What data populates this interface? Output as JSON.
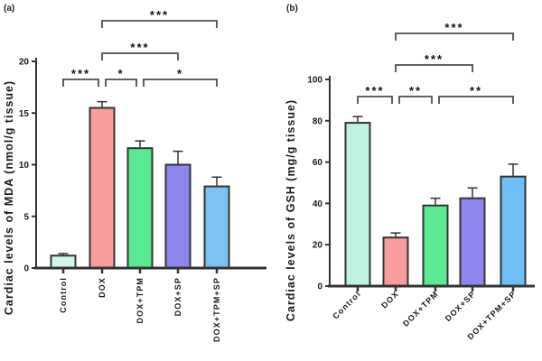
{
  "figure": {
    "background": "#ffffff",
    "axis_color": "#333333",
    "bracket_color": "#4d4d4d",
    "star_color": "#111111",
    "text_color": "#1a1a1a"
  },
  "chart_data": [
    {
      "panel_label": "(a)",
      "type": "bar",
      "title": "",
      "xlabel": "",
      "ylabel": "Cardiac levels of MDA (nmol/g tissue)",
      "categories": [
        "Control",
        "DOX",
        "DOX+TPM",
        "DOX+SP",
        "DOX+TPM+SP"
      ],
      "values": [
        1.2,
        15.5,
        11.6,
        10.0,
        7.9
      ],
      "errors_upper": [
        0.2,
        0.6,
        0.7,
        1.3,
        0.9
      ],
      "bar_colors": [
        "#d2f7e9",
        "#f89c9c",
        "#5aea90",
        "#8e86ee",
        "#7cc3f3"
      ],
      "bar_border_color": "#333333",
      "ylim": [
        0,
        20
      ],
      "yticks": [
        0,
        5,
        10,
        15,
        20
      ],
      "xtick_label_rotation_deg": 90,
      "grid": false,
      "legend": "none",
      "significance_brackets": [
        {
          "from": "Control",
          "to": "DOX",
          "label": "***",
          "row": 0
        },
        {
          "from": "DOX",
          "to": "DOX+TPM",
          "label": "*",
          "row": 0
        },
        {
          "from": "DOX+TPM",
          "to": "DOX+TPM+SP",
          "label": "*",
          "row": 0
        },
        {
          "from": "DOX",
          "to": "DOX+SP",
          "label": "***",
          "row": 1
        },
        {
          "from": "DOX",
          "to": "DOX+TPM+SP",
          "label": "***",
          "row": 2
        }
      ]
    },
    {
      "panel_label": "(b)",
      "type": "bar",
      "title": "",
      "xlabel": "",
      "ylabel": "Cardiac levels of GSH (mg/g tissue)",
      "categories": [
        "Control",
        "DOX",
        "DOX+TPM",
        "DOX+SP",
        "DOX+TPM+SP"
      ],
      "values": [
        79,
        23.5,
        39,
        42.5,
        53
      ],
      "errors_upper": [
        3,
        2.2,
        3.5,
        5,
        6
      ],
      "bar_colors": [
        "#bef3e0",
        "#f89c9c",
        "#5aea90",
        "#8e86ee",
        "#6fbef5"
      ],
      "bar_border_color": "#333333",
      "ylim": [
        0,
        100
      ],
      "yticks": [
        0,
        20,
        40,
        60,
        80,
        100
      ],
      "xtick_label_rotation_deg": 45,
      "grid": false,
      "legend": "none",
      "significance_brackets": [
        {
          "from": "Control",
          "to": "DOX",
          "label": "***",
          "row": 0
        },
        {
          "from": "DOX",
          "to": "DOX+TPM",
          "label": "**",
          "row": 0
        },
        {
          "from": "DOX+TPM",
          "to": "DOX+TPM+SP",
          "label": "**",
          "row": 0
        },
        {
          "from": "DOX",
          "to": "DOX+SP",
          "label": "***",
          "row": 1
        },
        {
          "from": "DOX",
          "to": "DOX+TPM+SP",
          "label": "***",
          "row": 2
        }
      ]
    }
  ]
}
